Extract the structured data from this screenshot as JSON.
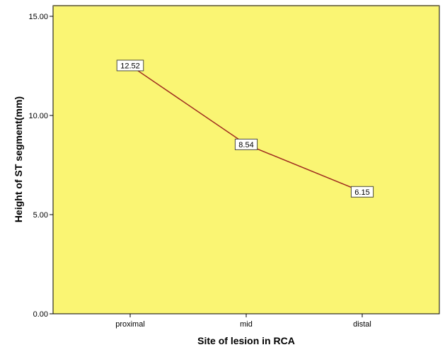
{
  "chart_data": {
    "type": "line",
    "title": "",
    "xlabel": "Site of lesion in RCA",
    "ylabel": "Height of ST segment(mm)",
    "categories": [
      "proximal",
      "mid",
      "distal"
    ],
    "values": [
      12.52,
      8.54,
      6.15
    ],
    "data_labels": [
      "12.52",
      "8.54",
      "6.15"
    ],
    "ylim": [
      0,
      15
    ],
    "yticks": [
      0,
      5,
      10,
      15
    ],
    "ytick_labels": [
      "0.00",
      "5.00",
      "10.00",
      "15.00"
    ],
    "grid": false,
    "legend": null
  },
  "colors": {
    "plot_background": "#FAF573",
    "line": "#9E2A1F",
    "frame": "#000000",
    "frame_top": "#7F7A55"
  }
}
